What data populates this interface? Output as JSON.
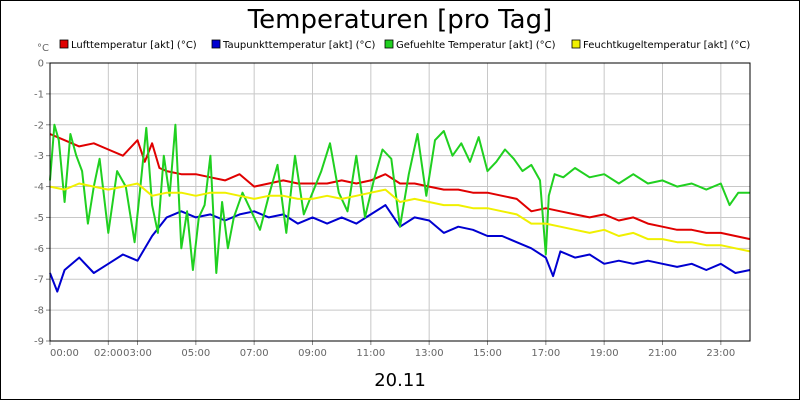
{
  "chart_data": {
    "type": "line",
    "title": "Temperaturen [pro Tag]",
    "ylabel": "°C",
    "xlabel": "20.11",
    "ylim": [
      -9,
      0
    ],
    "y_ticks": [
      0,
      -1,
      -2,
      -3,
      -4,
      -5,
      -6,
      -7,
      -8,
      -9
    ],
    "y_tick_labels": [
      "0",
      "-1",
      "-2",
      "-3",
      "-4",
      "-5",
      "-6",
      "-7",
      "-8",
      "-9"
    ],
    "xlim": [
      0,
      24
    ],
    "x_ticks": [
      0,
      2,
      3,
      5,
      7,
      9,
      11,
      13,
      15,
      17,
      19,
      21,
      23
    ],
    "x_tick_labels": [
      "00:00",
      "02:00",
      "03:00",
      "05:00",
      "07:00",
      "09:00",
      "11:00",
      "13:00",
      "15:00",
      "17:00",
      "19:00",
      "21:00",
      "23:00"
    ],
    "grid": true,
    "legend_position": "top",
    "series": [
      {
        "name": "Lufttemperatur [akt] (°C)",
        "color": "#e00000",
        "x": [
          0,
          0.5,
          1,
          1.5,
          2,
          2.5,
          3,
          3.25,
          3.5,
          3.75,
          4,
          4.5,
          5,
          5.5,
          6,
          6.5,
          7,
          7.5,
          8,
          8.5,
          9,
          9.5,
          10,
          10.5,
          11,
          11.5,
          12,
          12.5,
          13,
          13.5,
          14,
          14.5,
          15,
          15.5,
          16,
          16.5,
          17,
          17.5,
          18,
          18.5,
          19,
          19.5,
          20,
          20.5,
          21,
          21.5,
          22,
          22.5,
          23,
          23.5,
          24
        ],
        "y": [
          -2.3,
          -2.5,
          -2.7,
          -2.6,
          -2.8,
          -3.0,
          -2.5,
          -3.2,
          -2.6,
          -3.4,
          -3.5,
          -3.6,
          -3.6,
          -3.7,
          -3.8,
          -3.6,
          -4.0,
          -3.9,
          -3.8,
          -3.9,
          -3.9,
          -3.9,
          -3.8,
          -3.9,
          -3.8,
          -3.6,
          -3.9,
          -3.9,
          -4.0,
          -4.1,
          -4.1,
          -4.2,
          -4.2,
          -4.3,
          -4.4,
          -4.8,
          -4.7,
          -4.8,
          -4.9,
          -5.0,
          -4.9,
          -5.1,
          -5.0,
          -5.2,
          -5.3,
          -5.4,
          -5.4,
          -5.5,
          -5.5,
          -5.6,
          -5.7
        ]
      },
      {
        "name": "Taupunkttemperatur [akt] (°C)",
        "color": "#0000d0",
        "x": [
          0,
          0.25,
          0.5,
          1,
          1.5,
          2,
          2.5,
          3,
          3.5,
          4,
          4.5,
          5,
          5.5,
          6,
          6.5,
          7,
          7.5,
          8,
          8.5,
          9,
          9.5,
          10,
          10.5,
          11,
          11.5,
          12,
          12.5,
          13,
          13.5,
          14,
          14.5,
          15,
          15.5,
          16,
          16.5,
          17,
          17.25,
          17.5,
          18,
          18.5,
          19,
          19.5,
          20,
          20.5,
          21,
          21.5,
          22,
          22.5,
          23,
          23.5,
          24
        ],
        "y": [
          -6.8,
          -7.4,
          -6.7,
          -6.3,
          -6.8,
          -6.5,
          -6.2,
          -6.4,
          -5.6,
          -5.0,
          -4.8,
          -5.0,
          -4.9,
          -5.1,
          -4.9,
          -4.8,
          -5.0,
          -4.9,
          -5.2,
          -5.0,
          -5.2,
          -5.0,
          -5.2,
          -4.9,
          -4.6,
          -5.3,
          -5.0,
          -5.1,
          -5.5,
          -5.3,
          -5.4,
          -5.6,
          -5.6,
          -5.8,
          -6.0,
          -6.3,
          -6.9,
          -6.1,
          -6.3,
          -6.2,
          -6.5,
          -6.4,
          -6.5,
          -6.4,
          -6.5,
          -6.6,
          -6.5,
          -6.7,
          -6.5,
          -6.8,
          -6.7
        ]
      },
      {
        "name": "Gefuehlte Temperatur [akt] (°C)",
        "color": "#20d020",
        "x": [
          0,
          0.15,
          0.3,
          0.5,
          0.7,
          0.9,
          1.1,
          1.3,
          1.5,
          1.7,
          2,
          2.3,
          2.6,
          2.9,
          3.1,
          3.3,
          3.5,
          3.7,
          3.9,
          4.1,
          4.3,
          4.5,
          4.7,
          4.9,
          5.1,
          5.3,
          5.5,
          5.7,
          5.9,
          6.1,
          6.3,
          6.6,
          6.9,
          7.2,
          7.5,
          7.8,
          8.1,
          8.4,
          8.7,
          9,
          9.3,
          9.6,
          9.9,
          10.2,
          10.5,
          10.8,
          11.1,
          11.4,
          11.7,
          12,
          12.3,
          12.6,
          12.9,
          13.2,
          13.5,
          13.8,
          14.1,
          14.4,
          14.7,
          15,
          15.3,
          15.6,
          15.9,
          16.2,
          16.5,
          16.8,
          17,
          17.1,
          17.3,
          17.6,
          18,
          18.5,
          19,
          19.5,
          20,
          20.5,
          21,
          21.5,
          22,
          22.5,
          23,
          23.3,
          23.6,
          24
        ],
        "y": [
          -3.8,
          -2.0,
          -2.5,
          -4.5,
          -2.3,
          -3.0,
          -3.5,
          -5.2,
          -4.0,
          -3.1,
          -5.5,
          -3.5,
          -4.0,
          -5.8,
          -4.0,
          -2.1,
          -4.6,
          -5.5,
          -3.0,
          -4.3,
          -2.0,
          -6.0,
          -4.8,
          -6.7,
          -5.0,
          -4.6,
          -3.0,
          -6.8,
          -4.5,
          -6.0,
          -5.0,
          -4.2,
          -4.8,
          -5.4,
          -4.3,
          -3.3,
          -5.5,
          -3.0,
          -4.9,
          -4.2,
          -3.5,
          -2.6,
          -4.2,
          -4.8,
          -3.0,
          -5.0,
          -3.8,
          -2.8,
          -3.1,
          -5.3,
          -3.6,
          -2.3,
          -4.3,
          -2.5,
          -2.2,
          -3.0,
          -2.6,
          -3.2,
          -2.4,
          -3.5,
          -3.2,
          -2.8,
          -3.1,
          -3.5,
          -3.3,
          -3.8,
          -6.2,
          -4.3,
          -3.6,
          -3.7,
          -3.4,
          -3.7,
          -3.6,
          -3.9,
          -3.6,
          -3.9,
          -3.8,
          -4.0,
          -3.9,
          -4.1,
          -3.9,
          -4.6,
          -4.2,
          -4.2
        ]
      },
      {
        "name": "Feuchtkugeltemperatur [akt] (°C)",
        "color": "#f0f000",
        "x": [
          0,
          0.5,
          1,
          1.5,
          2,
          2.5,
          3,
          3.5,
          4,
          4.5,
          5,
          5.5,
          6,
          6.5,
          7,
          7.5,
          8,
          8.5,
          9,
          9.5,
          10,
          10.5,
          11,
          11.5,
          12,
          12.5,
          13,
          13.5,
          14,
          14.5,
          15,
          15.5,
          16,
          16.5,
          17,
          17.5,
          18,
          18.5,
          19,
          19.5,
          20,
          20.5,
          21,
          21.5,
          22,
          22.5,
          23,
          23.5,
          24
        ],
        "y": [
          -4.0,
          -4.1,
          -3.9,
          -4.0,
          -4.1,
          -4.0,
          -3.9,
          -4.3,
          -4.2,
          -4.2,
          -4.3,
          -4.2,
          -4.2,
          -4.3,
          -4.4,
          -4.3,
          -4.3,
          -4.4,
          -4.4,
          -4.3,
          -4.4,
          -4.3,
          -4.2,
          -4.1,
          -4.5,
          -4.4,
          -4.5,
          -4.6,
          -4.6,
          -4.7,
          -4.7,
          -4.8,
          -4.9,
          -5.2,
          -5.2,
          -5.3,
          -5.4,
          -5.5,
          -5.4,
          -5.6,
          -5.5,
          -5.7,
          -5.7,
          -5.8,
          -5.8,
          -5.9,
          -5.9,
          -6.0,
          -6.1
        ]
      }
    ]
  }
}
